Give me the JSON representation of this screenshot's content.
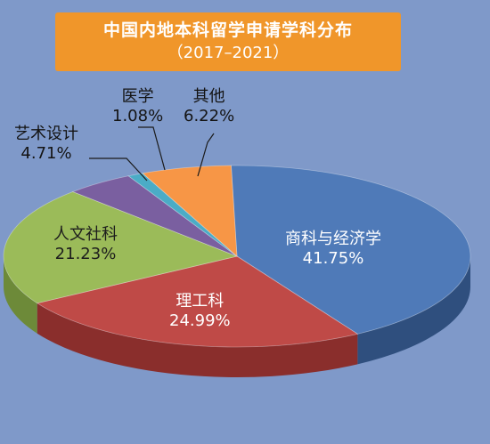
{
  "chart_data": {
    "type": "pie",
    "title": "中国内地本科留学申请学科分布",
    "subtitle": "（2017–2021）",
    "slices": [
      {
        "label": "商科与经济学",
        "value_label": "41.75%",
        "value": 41.75,
        "color": "#4f7ab8",
        "side": "#2f4f7e"
      },
      {
        "label": "理工科",
        "value_label": "24.99%",
        "value": 24.99,
        "color": "#bf4a47",
        "side": "#8a2e2c"
      },
      {
        "label": "人文社科",
        "value_label": "21.23%",
        "value": 21.23,
        "color": "#9bbb59",
        "side": "#6d8a39"
      },
      {
        "label": "艺术设计",
        "value_label": "4.71%",
        "value": 4.71,
        "color": "#7a5fa0",
        "side": "#54406f"
      },
      {
        "label": "医学",
        "value_label": "1.08%",
        "value": 1.08,
        "color": "#4bacc6",
        "side": "#2f7c90"
      },
      {
        "label": "其他",
        "value_label": "6.22%",
        "value": 6.22,
        "color": "#f79646",
        "side": "#b56a2c"
      }
    ]
  }
}
